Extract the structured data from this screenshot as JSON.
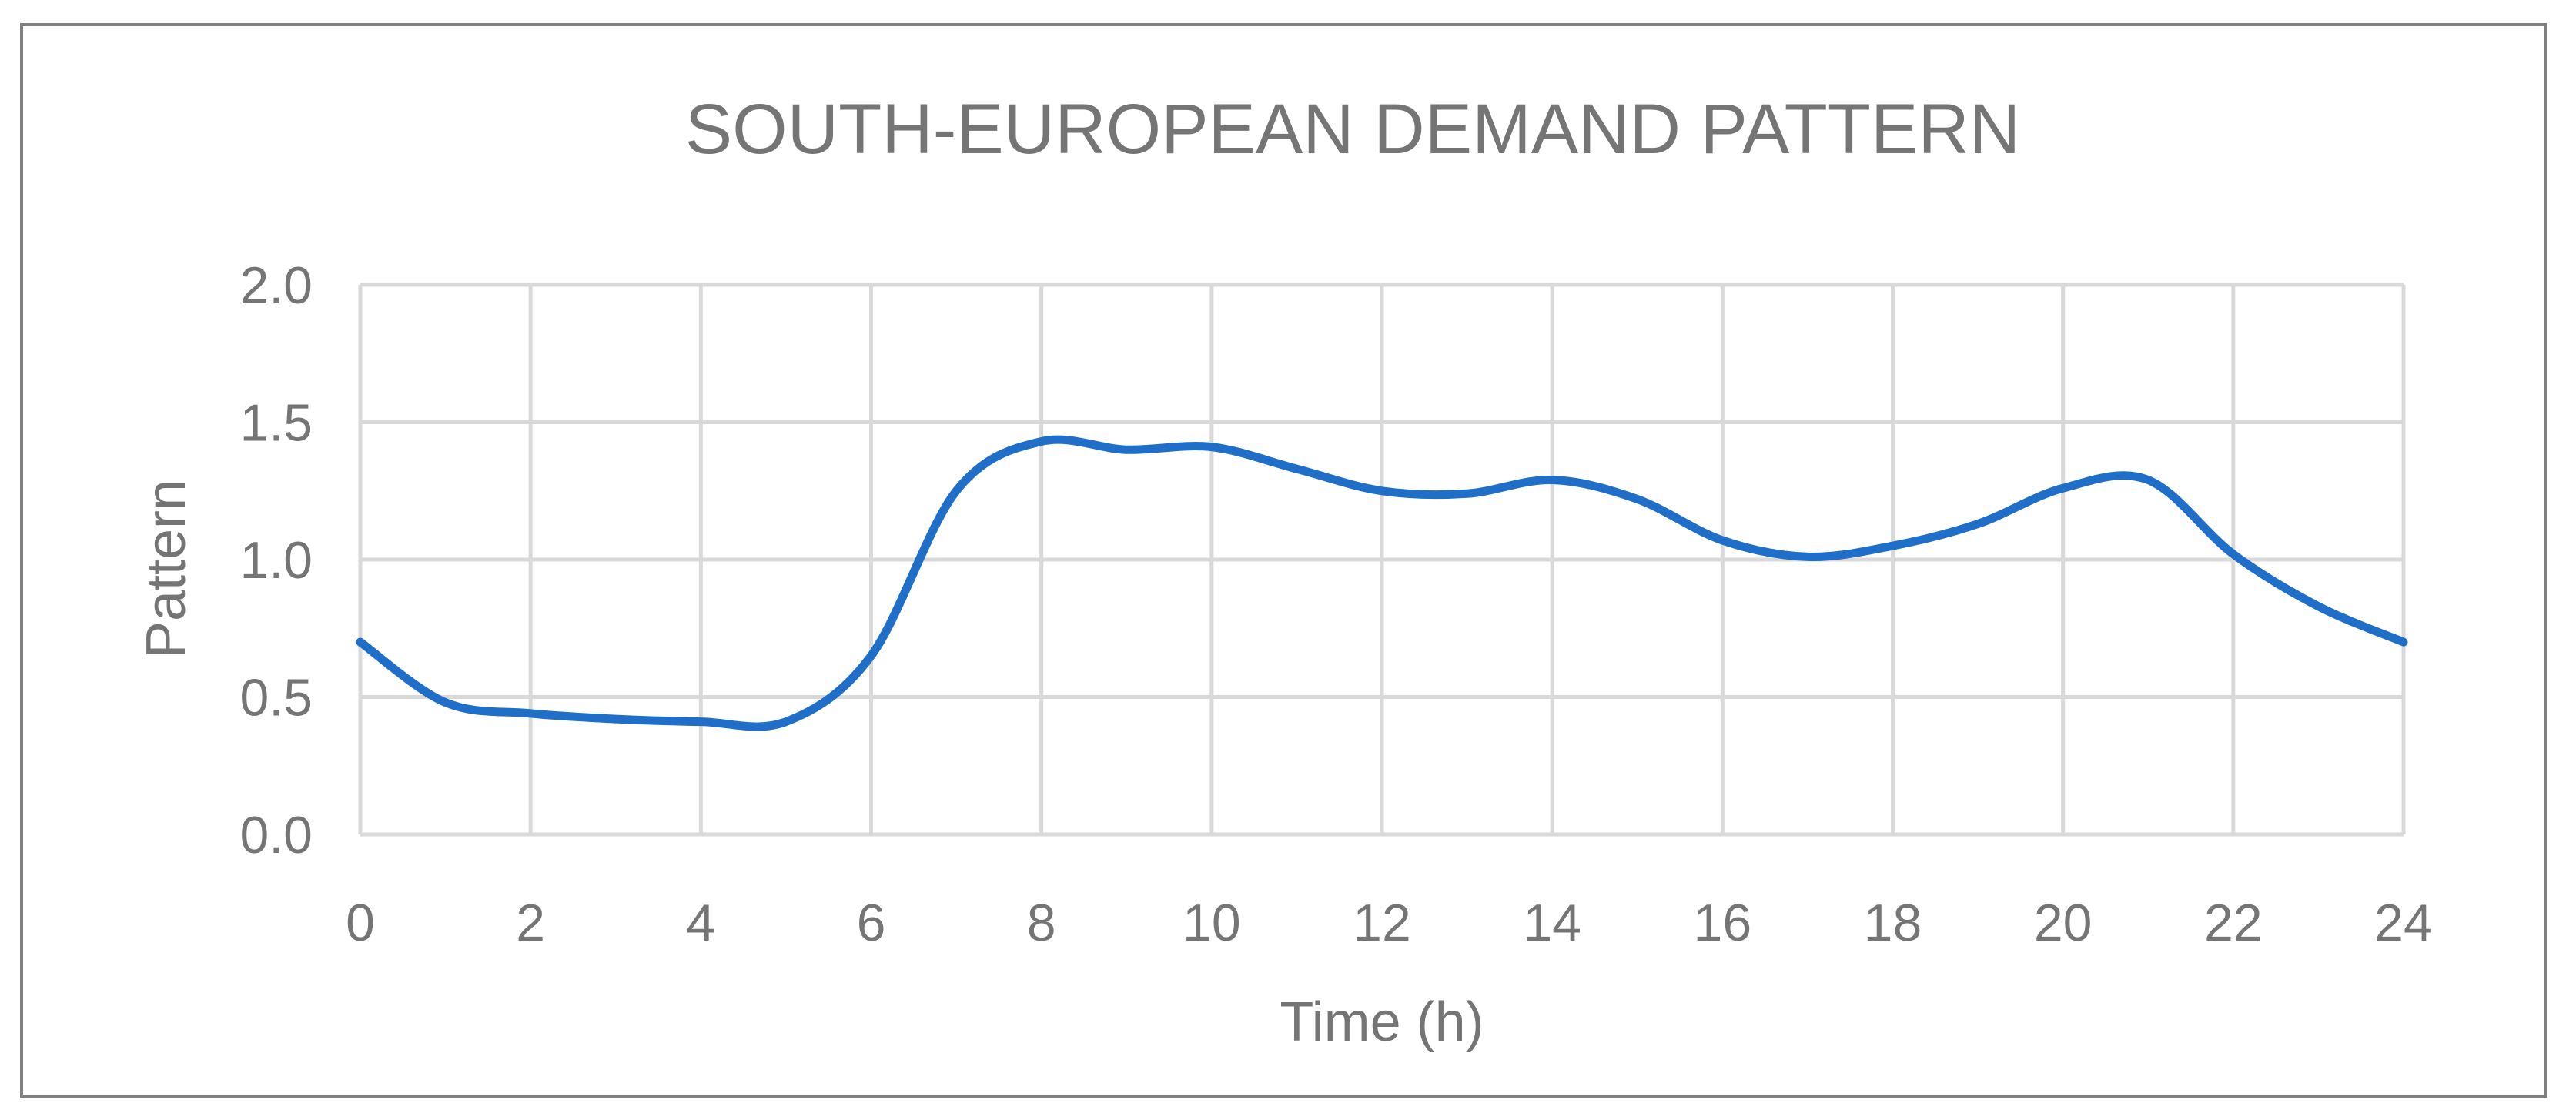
{
  "chart_data": {
    "type": "line",
    "title": "SOUTH-EUROPEAN DEMAND PATTERN",
    "xlabel": "Time (h)",
    "ylabel": "Pattern",
    "xlim": [
      0,
      24
    ],
    "ylim": [
      0,
      2
    ],
    "x_ticks": [
      "0",
      "2",
      "4",
      "6",
      "8",
      "10",
      "12",
      "14",
      "16",
      "18",
      "20",
      "22",
      "24"
    ],
    "y_ticks": [
      "0.0",
      "0.5",
      "1.0",
      "1.5",
      "2.0"
    ],
    "grid": true,
    "legend": "none",
    "series": [
      {
        "color": "#1f6fc8",
        "x": [
          0,
          1,
          2,
          3,
          4,
          5,
          6,
          7,
          8,
          9,
          10,
          11,
          12,
          13,
          14,
          15,
          16,
          17,
          18,
          19,
          20,
          21,
          22,
          23,
          24
        ],
        "y": [
          0.7,
          0.48,
          0.44,
          0.42,
          0.41,
          0.41,
          0.65,
          1.25,
          1.43,
          1.4,
          1.41,
          1.33,
          1.25,
          1.24,
          1.29,
          1.22,
          1.07,
          1.01,
          1.05,
          1.13,
          1.26,
          1.29,
          1.02,
          0.83,
          0.7
        ]
      }
    ]
  }
}
